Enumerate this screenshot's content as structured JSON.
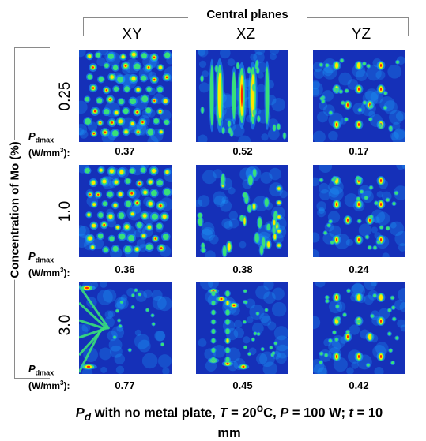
{
  "header": {
    "title": "Central planes"
  },
  "columns": [
    {
      "label": "XY"
    },
    {
      "label": "XZ"
    },
    {
      "label": "YZ"
    }
  ],
  "axis_left": {
    "label": "Concentration of Mo (%)"
  },
  "rows": [
    {
      "concentration": "0.25",
      "values": [
        "0.37",
        "0.52",
        "0.17"
      ]
    },
    {
      "concentration": "1.0",
      "values": [
        "0.36",
        "0.38",
        "0.24"
      ]
    },
    {
      "concentration": "3.0",
      "values": [
        "0.77",
        "0.45",
        "0.42"
      ]
    }
  ],
  "pd_label": {
    "symbol": "P",
    "subscript": "dmax",
    "unit_pre": "(W/mm",
    "unit_sup": "3",
    "unit_post": "):"
  },
  "caption": {
    "pd_symbol": "P",
    "pd_sub": "d",
    "text1": " with no metal plate, ",
    "t_sym": "T",
    "t_val": " = 20",
    "t_sup": "o",
    "t_unit": "C, ",
    "p_sym": "P",
    "p_val": " = 100 W; ",
    "th_sym": "t",
    "th_val": " = 10",
    "line2": "mm"
  },
  "colors": {
    "background_field": "#1530b8",
    "hot": "#ff2a00",
    "warm": "#ffe600",
    "mid": "#38e07a",
    "cool": "#1ea0ff"
  }
}
